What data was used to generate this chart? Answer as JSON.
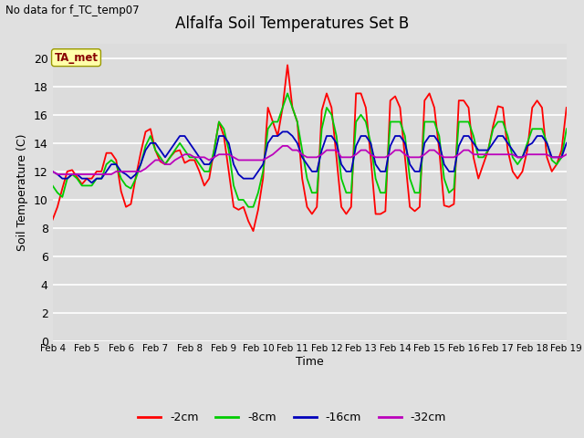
{
  "title": "Alfalfa Soil Temperatures Set B",
  "subtitle": "No data for f_TC_temp07",
  "xlabel": "Time",
  "ylabel": "Soil Temperature (C)",
  "ylim": [
    0,
    21
  ],
  "yticks": [
    0,
    2,
    4,
    6,
    8,
    10,
    12,
    14,
    16,
    18,
    20
  ],
  "x_start": 4.0,
  "x_end": 19.0,
  "xtick_labels": [
    "Feb 4",
    "Feb 5",
    "Feb 6",
    "Feb 7",
    "Feb 8",
    "Feb 9",
    "Feb 10",
    "Feb 11",
    "Feb 12",
    "Feb 13",
    "Feb 14",
    "Feb 15",
    "Feb 16",
    "Feb 17",
    "Feb 18",
    "Feb 19"
  ],
  "xtick_positions": [
    4,
    5,
    6,
    7,
    8,
    9,
    10,
    11,
    12,
    13,
    14,
    15,
    16,
    17,
    18,
    19
  ],
  "background_color": "#e0e0e0",
  "plot_bg_color": "#dcdcdc",
  "grid_color": "#ffffff",
  "line_colors": {
    "2cm": "#ff0000",
    "8cm": "#00cc00",
    "16cm": "#0000bb",
    "32cm": "#bb00bb"
  },
  "legend_labels": [
    "-2cm",
    "-8cm",
    "-16cm",
    "-32cm"
  ],
  "legend_colors": [
    "#ff0000",
    "#00cc00",
    "#0000bb",
    "#bb00bb"
  ],
  "annotation_text": "TA_met",
  "annotation_box_color": "#ffffaa",
  "annotation_text_color": "#880000",
  "t_2cm": [
    8.6,
    9.5,
    10.8,
    12.0,
    12.1,
    11.6,
    11.1,
    11.5,
    11.5,
    12.0,
    12.0,
    13.3,
    13.3,
    12.8,
    10.6,
    9.5,
    9.7,
    11.6,
    13.3,
    14.8,
    15.0,
    13.5,
    12.7,
    12.5,
    13.0,
    13.4,
    13.5,
    12.6,
    12.8,
    12.8,
    12.0,
    11.0,
    11.5,
    13.5,
    15.5,
    14.5,
    12.0,
    9.5,
    9.3,
    9.5,
    8.5,
    7.8,
    9.3,
    11.5,
    16.5,
    15.5,
    14.5,
    16.5,
    19.5,
    16.5,
    15.5,
    11.5,
    9.5,
    9.0,
    9.5,
    16.3,
    17.5,
    16.5,
    13.0,
    9.5,
    9.0,
    9.5,
    17.5,
    17.5,
    16.5,
    13.0,
    9.0,
    9.0,
    9.2,
    17.0,
    17.3,
    16.5,
    13.0,
    9.5,
    9.2,
    9.5,
    17.0,
    17.5,
    16.5,
    13.5,
    9.6,
    9.5,
    9.7,
    17.0,
    17.0,
    16.5,
    13.0,
    11.5,
    12.5,
    13.5,
    15.2,
    16.6,
    16.5,
    13.5,
    12.0,
    11.5,
    12.0,
    13.5,
    16.5,
    17.0,
    16.5,
    13.0,
    12.0,
    12.5,
    13.5,
    16.5
  ],
  "t_8cm": [
    11.0,
    10.5,
    10.2,
    11.5,
    11.8,
    11.5,
    11.0,
    11.0,
    11.0,
    11.5,
    11.5,
    12.5,
    12.8,
    12.5,
    11.5,
    11.0,
    10.8,
    11.5,
    12.5,
    13.8,
    14.5,
    13.5,
    13.0,
    12.5,
    13.0,
    13.5,
    14.0,
    13.5,
    13.0,
    13.0,
    12.5,
    12.0,
    12.0,
    13.5,
    15.5,
    15.0,
    13.5,
    11.0,
    10.0,
    10.0,
    9.5,
    9.5,
    10.5,
    12.0,
    15.0,
    15.5,
    15.5,
    16.5,
    17.5,
    16.5,
    15.5,
    13.5,
    11.5,
    10.5,
    10.5,
    15.0,
    16.5,
    16.0,
    14.5,
    11.5,
    10.5,
    10.5,
    15.5,
    16.0,
    15.5,
    14.0,
    11.5,
    10.5,
    10.5,
    15.5,
    15.5,
    15.5,
    14.5,
    11.5,
    10.5,
    10.5,
    15.5,
    15.5,
    15.5,
    14.5,
    11.5,
    10.5,
    10.8,
    15.5,
    15.5,
    15.5,
    14.5,
    13.0,
    13.0,
    13.5,
    15.0,
    15.5,
    15.5,
    14.5,
    13.0,
    12.5,
    13.0,
    14.0,
    15.0,
    15.0,
    15.0,
    14.0,
    12.8,
    12.5,
    13.0,
    15.0
  ],
  "t_16cm": [
    12.0,
    11.8,
    11.5,
    11.5,
    11.8,
    11.8,
    11.5,
    11.5,
    11.2,
    11.5,
    11.5,
    12.0,
    12.5,
    12.5,
    12.0,
    11.8,
    11.5,
    11.8,
    12.5,
    13.5,
    14.0,
    14.0,
    13.5,
    13.0,
    13.5,
    14.0,
    14.5,
    14.5,
    14.0,
    13.5,
    13.0,
    12.5,
    12.5,
    13.0,
    14.5,
    14.5,
    14.0,
    12.5,
    11.8,
    11.5,
    11.5,
    11.5,
    12.0,
    12.5,
    14.0,
    14.5,
    14.5,
    14.8,
    14.8,
    14.5,
    14.0,
    13.0,
    12.5,
    12.0,
    12.0,
    13.5,
    14.5,
    14.5,
    14.0,
    12.5,
    12.0,
    12.0,
    13.8,
    14.5,
    14.5,
    14.0,
    12.5,
    12.0,
    12.0,
    13.8,
    14.5,
    14.5,
    14.0,
    12.5,
    12.0,
    12.0,
    14.0,
    14.5,
    14.5,
    14.0,
    12.5,
    12.0,
    12.0,
    13.8,
    14.5,
    14.5,
    14.0,
    13.5,
    13.5,
    13.5,
    14.0,
    14.5,
    14.5,
    14.0,
    13.5,
    13.0,
    13.0,
    13.8,
    14.0,
    14.5,
    14.5,
    14.0,
    13.0,
    13.0,
    13.0,
    14.0
  ],
  "t_32cm": [
    12.0,
    11.8,
    11.8,
    11.8,
    11.8,
    11.8,
    11.8,
    11.8,
    11.8,
    11.8,
    11.8,
    11.8,
    11.8,
    12.0,
    12.0,
    12.0,
    12.0,
    12.0,
    12.0,
    12.2,
    12.5,
    12.8,
    12.8,
    12.5,
    12.5,
    12.8,
    13.0,
    13.2,
    13.2,
    13.0,
    13.0,
    13.0,
    12.8,
    13.0,
    13.2,
    13.2,
    13.2,
    13.0,
    12.8,
    12.8,
    12.8,
    12.8,
    12.8,
    12.8,
    13.0,
    13.2,
    13.5,
    13.8,
    13.8,
    13.5,
    13.5,
    13.2,
    13.0,
    13.0,
    13.0,
    13.2,
    13.5,
    13.5,
    13.5,
    13.0,
    13.0,
    13.0,
    13.2,
    13.5,
    13.5,
    13.2,
    13.0,
    13.0,
    13.0,
    13.2,
    13.5,
    13.5,
    13.2,
    13.0,
    13.0,
    13.0,
    13.2,
    13.5,
    13.5,
    13.2,
    13.0,
    13.0,
    13.0,
    13.2,
    13.5,
    13.5,
    13.2,
    13.2,
    13.2,
    13.2,
    13.2,
    13.2,
    13.2,
    13.2,
    13.2,
    13.0,
    13.0,
    13.2,
    13.2,
    13.2,
    13.2,
    13.2,
    13.0,
    13.0,
    13.0,
    13.2
  ]
}
